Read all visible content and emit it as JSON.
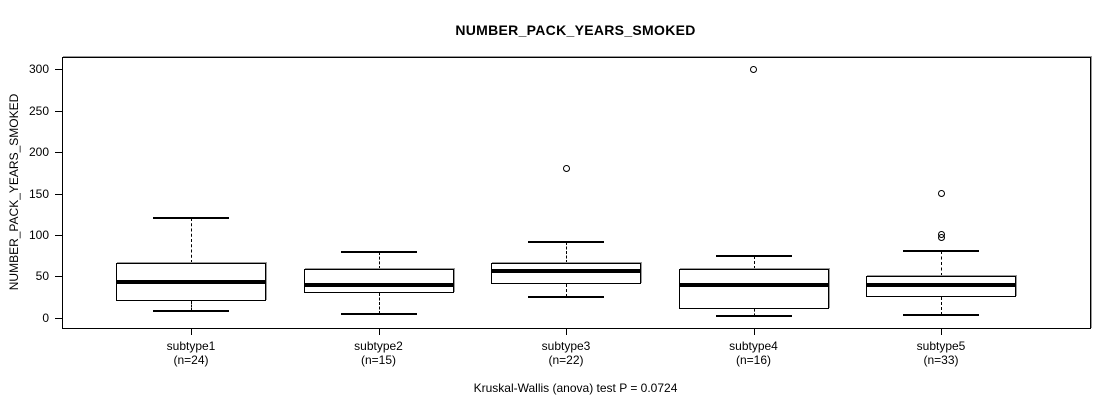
{
  "chart_data": {
    "type": "boxplot",
    "title": "NUMBER_PACK_YEARS_SMOKED",
    "ylabel": "NUMBER_PACK_YEARS_SMOKED",
    "xlabel": "",
    "caption": "Kruskal-Wallis (anova) test P = 0.0724",
    "ylim": [
      0,
      300
    ],
    "yticks": [
      0,
      50,
      100,
      150,
      200,
      250,
      300
    ],
    "grid": false,
    "legend": "none",
    "categories": [
      "subtype1",
      "subtype2",
      "subtype3",
      "subtype4",
      "subtype5"
    ],
    "series": [
      {
        "label": "subtype1",
        "n_label": "(n=24)",
        "n": 24,
        "whisker_low": 8,
        "q1": 20,
        "median": 43,
        "q3": 66,
        "whisker_high": 120,
        "outliers": []
      },
      {
        "label": "subtype2",
        "n_label": "(n=15)",
        "n": 15,
        "whisker_low": 4,
        "q1": 30,
        "median": 39,
        "q3": 59,
        "whisker_high": 79,
        "outliers": []
      },
      {
        "label": "subtype3",
        "n_label": "(n=22)",
        "n": 22,
        "whisker_low": 25,
        "q1": 41,
        "median": 56,
        "q3": 66,
        "whisker_high": 91,
        "outliers": [
          180
        ]
      },
      {
        "label": "subtype4",
        "n_label": "(n=16)",
        "n": 16,
        "whisker_low": 2,
        "q1": 11,
        "median": 40,
        "q3": 59,
        "whisker_high": 75,
        "outliers": [
          300
        ]
      },
      {
        "label": "subtype5",
        "n_label": "(n=33)",
        "n": 33,
        "whisker_low": 3,
        "q1": 25,
        "median": 39,
        "q3": 50,
        "whisker_high": 80,
        "outliers": [
          97,
          100,
          150
        ]
      }
    ],
    "colors": {
      "line": "#000000",
      "box_fill": "#ffffff",
      "background": "#ffffff"
    }
  }
}
